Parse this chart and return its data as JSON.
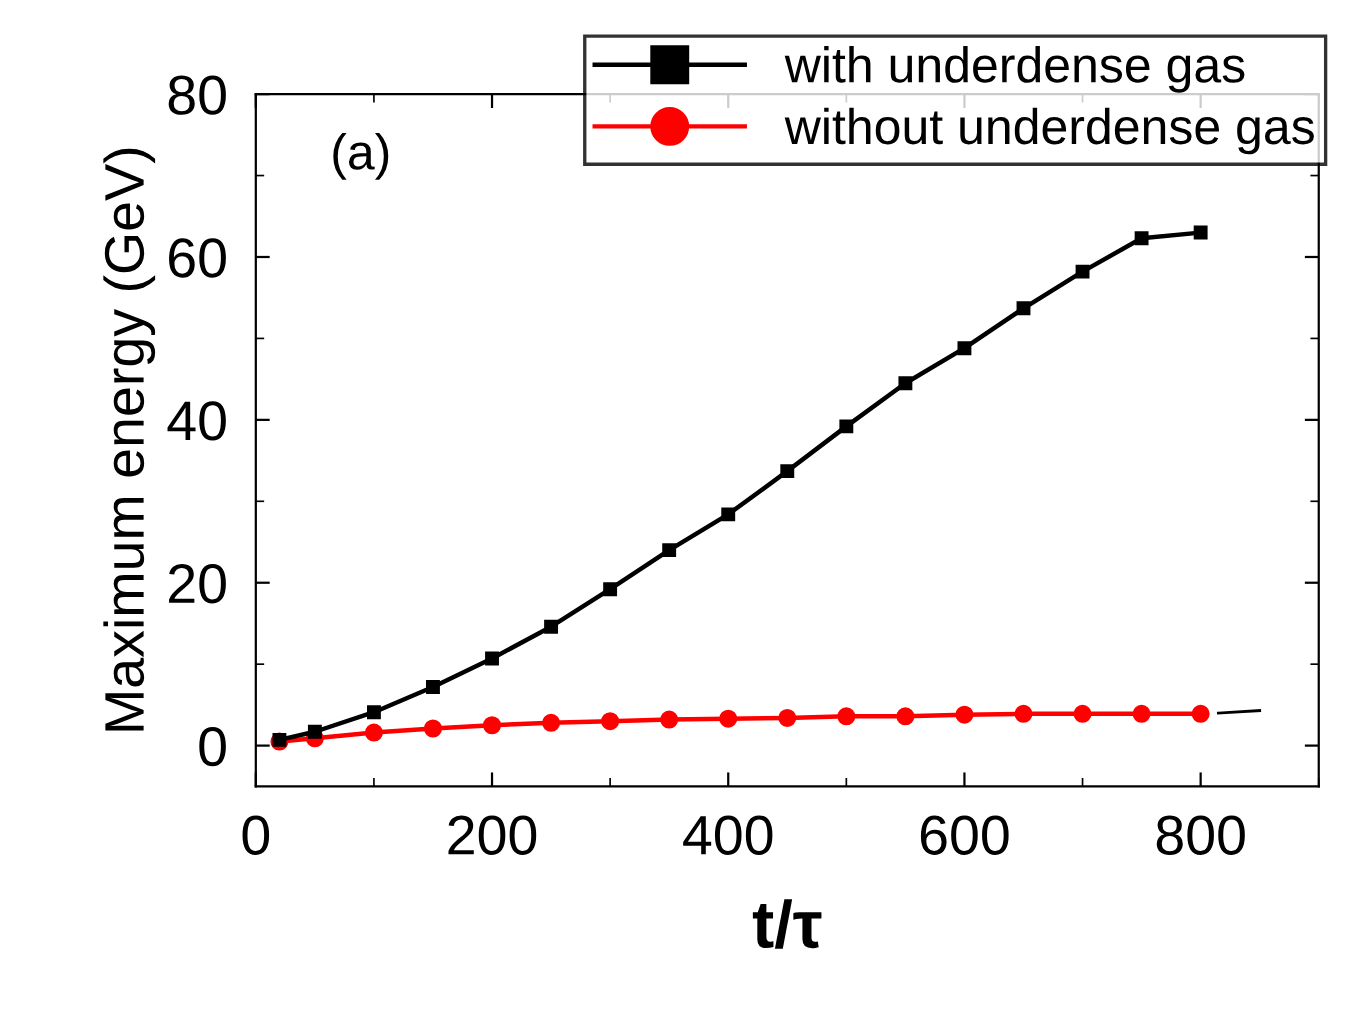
{
  "chart_data": {
    "type": "line",
    "xlabel": "t/τ",
    "ylabel": "Maximum energy (GeV)",
    "annotations": [
      "(a)"
    ],
    "xlim": [
      0,
      900
    ],
    "ylim": [
      -5,
      80
    ],
    "xticks": [
      0,
      200,
      400,
      600,
      800
    ],
    "yticks": [
      0,
      20,
      40,
      60,
      80
    ],
    "grid": false,
    "legend": "top right",
    "series": [
      {
        "name": "with underdense gas",
        "color": "#000000",
        "marker": "square",
        "x": [
          20,
          50,
          100,
          150,
          200,
          250,
          300,
          350,
          400,
          450,
          500,
          550,
          600,
          650,
          700,
          750,
          800
        ],
        "values": [
          0.7,
          1.7,
          4.1,
          7.2,
          10.7,
          14.6,
          19.2,
          24.0,
          28.4,
          33.7,
          39.2,
          44.5,
          48.8,
          53.7,
          58.2,
          62.3,
          63.0
        ]
      },
      {
        "name": "without underdense gas",
        "color": "#ff0000",
        "marker": "circle",
        "x": [
          20,
          50,
          100,
          150,
          200,
          250,
          300,
          350,
          400,
          450,
          500,
          550,
          600,
          650,
          700,
          750,
          800
        ],
        "values": [
          0.5,
          0.9,
          1.6,
          2.1,
          2.5,
          2.8,
          3.0,
          3.2,
          3.3,
          3.4,
          3.6,
          3.6,
          3.8,
          3.9,
          3.9,
          3.9,
          3.9
        ]
      },
      {
        "color": "#000000",
        "marker": "none",
        "x": [
          815,
          850
        ],
        "values": [
          4.0,
          4.3
        ]
      }
    ]
  }
}
